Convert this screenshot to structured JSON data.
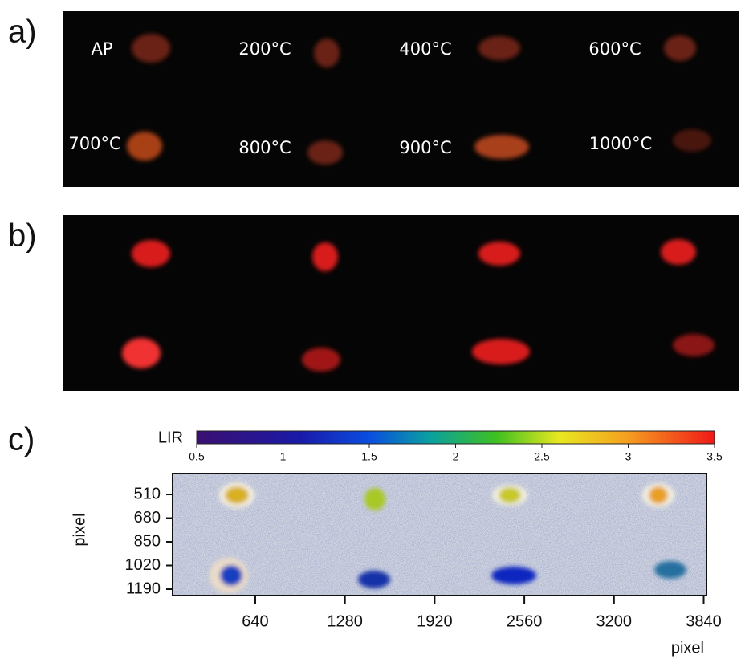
{
  "panels": [
    {
      "label": "a)",
      "samples": [
        "AP",
        "200°C",
        "400°C",
        "600°C",
        "700°C",
        "800°C",
        "900°C",
        "1000°C"
      ]
    },
    {
      "label": "b)"
    },
    {
      "label": "c)",
      "colorbar": {
        "label": "LIR",
        "range": [
          0.5,
          3.5
        ],
        "ticks": [
          0.5,
          1.0,
          1.5,
          2.0,
          2.5,
          3.0,
          3.5
        ]
      },
      "yaxis": {
        "label": "pixel",
        "lim": [
          360,
          1236
        ],
        "ticks": [
          510,
          680,
          850,
          1020,
          1190
        ]
      },
      "xaxis": {
        "label": "pixel",
        "lim": [
          50,
          3860
        ],
        "ticks": [
          640,
          1280,
          1920,
          2560,
          3200,
          3840
        ]
      }
    }
  ]
}
